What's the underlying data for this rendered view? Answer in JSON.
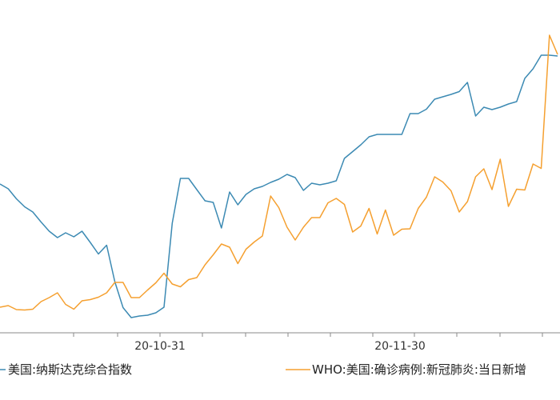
{
  "chart_data": {
    "type": "line",
    "x_tick_labels": [
      "20-10-31",
      "20-11-30"
    ],
    "series": [
      {
        "name": "美国:纳斯达克综合指数",
        "color": "#3c8ab3",
        "values": [
          230.0,
          236.0,
          248.5,
          258.5,
          265.0,
          277.5,
          289.0,
          297.0,
          291.0,
          296.0,
          289.0,
          303.0,
          317.5,
          306.5,
          352.0,
          384.5,
          397.0,
          395.0,
          394.0,
          391.0,
          384.0,
          279.0,
          223.0,
          223.0,
          237.0,
          251.0,
          253.0,
          285.0,
          240.0,
          256.0,
          243.0,
          236.0,
          233.0,
          228.0,
          224.0,
          218.0,
          222.0,
          238.0,
          229.0,
          231.0,
          229.0,
          226.0,
          198.0,
          189.5,
          181.0,
          171.0,
          168.0,
          168.0,
          168.0,
          168.0,
          142.0,
          142.0,
          136.5,
          124.0,
          121.0,
          118.0,
          114.5,
          103.0,
          145.0,
          134.0,
          137.0,
          134.0,
          130.0,
          127.0,
          98.0,
          86.0,
          69.0,
          69.0,
          70.0
        ]
      },
      {
        "name": "WHO:美国:确诊病例:新冠肺炎:当日新增",
        "color": "#f5a030",
        "values": [
          384.0,
          382.0,
          387.0,
          387.5,
          386.5,
          377.0,
          372.0,
          366.0,
          380.5,
          386.5,
          376.0,
          374.5,
          371.5,
          366.0,
          353.0,
          353.0,
          372.0,
          372.0,
          362.5,
          353.5,
          341.5,
          355.0,
          358.5,
          349.5,
          347.0,
          331.0,
          318.5,
          305.0,
          309.0,
          329.5,
          311.5,
          302.5,
          295.0,
          245.0,
          259.5,
          284.0,
          300.0,
          284.0,
          272.0,
          272.0,
          253.5,
          248.0,
          255.5,
          290.0,
          282.5,
          260.5,
          292.5,
          262.5,
          294.0,
          286.5,
          286.0,
          260.5,
          246.5,
          221.0,
          227.5,
          238.5,
          265.0,
          252.0,
          221.0,
          211.0,
          237.0,
          199.0,
          258.0,
          236.5,
          237.5,
          205.0,
          210.5,
          44.0,
          68.0
        ]
      }
    ],
    "legend": {
      "position": "bottom",
      "items": [
        "美国:纳斯达克综合指数",
        "WHO:美国:确诊病例:新冠肺炎:当日新增"
      ]
    },
    "legend_text": {
      "left": "美国:纳斯达克综合指数",
      "right": "WHO:美国:确诊病例:新冠肺炎:当日新增"
    },
    "grid": false
  }
}
